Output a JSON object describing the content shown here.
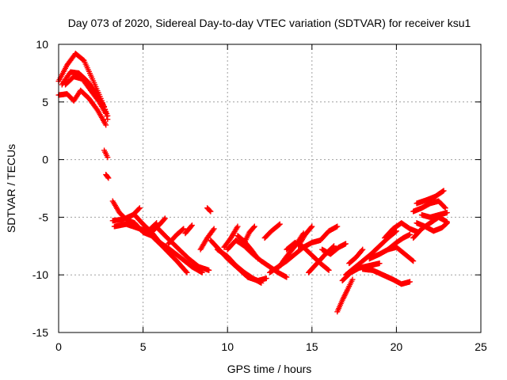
{
  "chart_data": {
    "type": "scatter",
    "title": "Day 073 of 2020, Sidereal Day-to-day VTEC variation (SDTVAR) for receiver ksu1",
    "xlabel": "GPS time / hours",
    "ylabel": "SDTVAR / TECUs",
    "xlim": [
      0,
      25
    ],
    "ylim": [
      -15,
      10
    ],
    "xticks": [
      0,
      5,
      10,
      15,
      20,
      25
    ],
    "yticks": [
      -15,
      -10,
      -5,
      0,
      5,
      10
    ],
    "grid": true,
    "marker": "plus",
    "series_color": "#ff0000",
    "tracks": [
      {
        "x": [
          0,
          0.5,
          1.0,
          1.5,
          2.0,
          2.5,
          2.9
        ],
        "y": [
          6.8,
          8.2,
          9.2,
          8.6,
          7.0,
          5.3,
          3.8
        ]
      },
      {
        "x": [
          0.2,
          0.7,
          1.2,
          1.7,
          2.2,
          2.7,
          2.9
        ],
        "y": [
          6.5,
          7.6,
          7.5,
          6.8,
          5.8,
          4.6,
          3.5
        ]
      },
      {
        "x": [
          0.4,
          0.9,
          1.4,
          1.9,
          2.4,
          2.8
        ],
        "y": [
          6.5,
          7.2,
          7.0,
          6.0,
          5.0,
          4.0
        ]
      },
      {
        "x": [
          0,
          0.5,
          0.9,
          1.3,
          1.8,
          2.3,
          2.8
        ],
        "y": [
          5.6,
          5.7,
          5.1,
          6.0,
          5.3,
          4.3,
          3.0
        ]
      },
      {
        "x": [
          2.7,
          2.9
        ],
        "y": [
          0.8,
          0.2
        ]
      },
      {
        "x": [
          2.8,
          2.95
        ],
        "y": [
          -1.3,
          -1.6
        ]
      },
      {
        "x": [
          3.2,
          3.6,
          4.0,
          4.5,
          5.0,
          5.5,
          6.2,
          7.0,
          7.6
        ],
        "y": [
          -3.6,
          -4.6,
          -5.2,
          -5.5,
          -6.3,
          -6.6,
          -7.6,
          -8.8,
          -9.8
        ]
      },
      {
        "x": [
          3.2,
          3.8,
          4.4,
          4.8
        ],
        "y": [
          -5.3,
          -5.2,
          -4.8,
          -4.2
        ]
      },
      {
        "x": [
          3.3,
          4.0,
          4.8,
          5.3,
          5.8
        ],
        "y": [
          -5.8,
          -5.6,
          -6.0,
          -6.2,
          -5.5
        ]
      },
      {
        "x": [
          4.5,
          5.0,
          5.5,
          6.0,
          6.6,
          7.3,
          7.9,
          8.5
        ],
        "y": [
          -4.8,
          -5.6,
          -6.3,
          -7.2,
          -7.8,
          -8.6,
          -9.3,
          -9.8
        ]
      },
      {
        "x": [
          5.5,
          6.0,
          6.3
        ],
        "y": [
          -6.3,
          -5.6,
          -5.1
        ]
      },
      {
        "x": [
          5.7,
          6.3,
          7.0,
          7.7,
          8.3,
          8.9
        ],
        "y": [
          -5.7,
          -6.6,
          -7.6,
          -8.6,
          -9.3,
          -9.6
        ]
      },
      {
        "x": [
          6.5,
          7.0,
          7.4
        ],
        "y": [
          -7.3,
          -6.5,
          -6.0
        ]
      },
      {
        "x": [
          7.5,
          7.9
        ],
        "y": [
          -6.4,
          -5.7
        ]
      },
      {
        "x": [
          8.8,
          9.0
        ],
        "y": [
          -4.2,
          -4.5
        ]
      },
      {
        "x": [
          8.4,
          8.8,
          9.2
        ],
        "y": [
          -7.8,
          -6.8,
          -6.0
        ]
      },
      {
        "x": [
          9.0,
          9.5,
          10.0,
          10.6,
          11.2,
          11.8,
          12.3
        ],
        "y": [
          -7.0,
          -7.8,
          -8.6,
          -9.4,
          -10.2,
          -10.5,
          -10.3
        ]
      },
      {
        "x": [
          9.4,
          10.0,
          10.5,
          11.0,
          11.5,
          12.0
        ],
        "y": [
          -7.8,
          -8.4,
          -9.2,
          -9.8,
          -10.3,
          -10.7
        ]
      },
      {
        "x": [
          9.8,
          10.2,
          10.6
        ],
        "y": [
          -7.6,
          -6.8,
          -5.8
        ]
      },
      {
        "x": [
          10.0,
          10.5,
          11.0,
          11.5,
          12.0,
          12.5,
          13.0,
          13.5
        ],
        "y": [
          -7.8,
          -7.0,
          -7.5,
          -8.2,
          -8.8,
          -9.3,
          -9.8,
          -10.2
        ]
      },
      {
        "x": [
          10.6,
          11.0,
          11.4,
          11.8
        ],
        "y": [
          -6.6,
          -7.1,
          -7.8,
          -8.6
        ]
      },
      {
        "x": [
          11.0,
          11.3,
          11.6
        ],
        "y": [
          -7.2,
          -6.3,
          -5.8
        ]
      },
      {
        "x": [
          12.2,
          12.6,
          13.1
        ],
        "y": [
          -6.8,
          -6.2,
          -5.6
        ]
      },
      {
        "x": [
          12.5,
          13.0,
          13.5,
          14.0,
          14.5,
          15.0,
          15.5
        ],
        "y": [
          -9.8,
          -9.3,
          -8.8,
          -8.2,
          -7.6,
          -7.2,
          -7.0
        ]
      },
      {
        "x": [
          13.0,
          13.5,
          14.0,
          14.5
        ],
        "y": [
          -9.4,
          -8.4,
          -7.5,
          -6.4
        ]
      },
      {
        "x": [
          13.5,
          14.0,
          14.5,
          15.0,
          15.5,
          16.0
        ],
        "y": [
          -7.8,
          -7.2,
          -7.6,
          -8.3,
          -9.0,
          -9.6
        ]
      },
      {
        "x": [
          14.2,
          14.6,
          15.0
        ],
        "y": [
          -7.5,
          -6.5,
          -5.8
        ]
      },
      {
        "x": [
          14.8,
          15.3,
          15.8,
          16.3
        ],
        "y": [
          -9.8,
          -9.0,
          -8.2,
          -7.5
        ]
      },
      {
        "x": [
          15.5,
          16.0,
          16.5
        ],
        "y": [
          -7.0,
          -6.2,
          -5.8
        ]
      },
      {
        "x": [
          15.6,
          16.1,
          16.6,
          17.0
        ],
        "y": [
          -7.8,
          -8.2,
          -7.6,
          -7.3
        ]
      },
      {
        "x": [
          16.5,
          16.8,
          17.1,
          17.4
        ],
        "y": [
          -13.2,
          -12.2,
          -11.3,
          -10.4
        ]
      },
      {
        "x": [
          16.8,
          17.3,
          17.8,
          18.4,
          19.0
        ],
        "y": [
          -10.5,
          -9.8,
          -9.4,
          -9.2,
          -9.0
        ]
      },
      {
        "x": [
          17.0,
          17.5,
          18.0,
          18.5,
          19.0,
          19.5,
          20.0
        ],
        "y": [
          -10.0,
          -9.4,
          -8.8,
          -8.2,
          -7.5,
          -6.8,
          -6.2
        ]
      },
      {
        "x": [
          17.2,
          17.6,
          18.0
        ],
        "y": [
          -9.0,
          -8.5,
          -7.8
        ]
      },
      {
        "x": [
          18.0,
          18.6,
          19.2,
          19.8,
          20.3,
          20.8
        ],
        "y": [
          -9.5,
          -9.6,
          -10.0,
          -10.4,
          -10.8,
          -10.6
        ]
      },
      {
        "x": [
          18.4,
          19.0,
          19.5,
          20.0,
          20.5,
          21.0
        ],
        "y": [
          -8.6,
          -8.2,
          -7.8,
          -7.6,
          -8.2,
          -8.8
        ]
      },
      {
        "x": [
          19.3,
          19.8,
          20.3,
          20.8,
          21.3
        ],
        "y": [
          -6.8,
          -6.0,
          -5.5,
          -6.0,
          -6.3
        ]
      },
      {
        "x": [
          19.5,
          20.0,
          20.4,
          20.8
        ],
        "y": [
          -7.8,
          -7.2,
          -6.8,
          -6.5
        ]
      },
      {
        "x": [
          21.0,
          21.5,
          22.0,
          22.5,
          22.9
        ],
        "y": [
          -4.5,
          -4.2,
          -3.8,
          -3.6,
          -4.2
        ]
      },
      {
        "x": [
          21.2,
          21.8,
          22.3,
          22.8
        ],
        "y": [
          -3.8,
          -3.5,
          -3.2,
          -2.7
        ]
      },
      {
        "x": [
          21.0,
          21.5,
          22.0,
          22.5,
          23.0
        ],
        "y": [
          -6.8,
          -6.0,
          -5.5,
          -5.0,
          -5.4
        ]
      },
      {
        "x": [
          21.2,
          21.7,
          22.2,
          22.7,
          23.0
        ],
        "y": [
          -5.5,
          -5.8,
          -6.2,
          -5.9,
          -5.5
        ]
      },
      {
        "x": [
          21.5,
          22.0,
          22.5,
          23.0
        ],
        "y": [
          -4.8,
          -5.0,
          -4.8,
          -4.6
        ]
      }
    ]
  }
}
